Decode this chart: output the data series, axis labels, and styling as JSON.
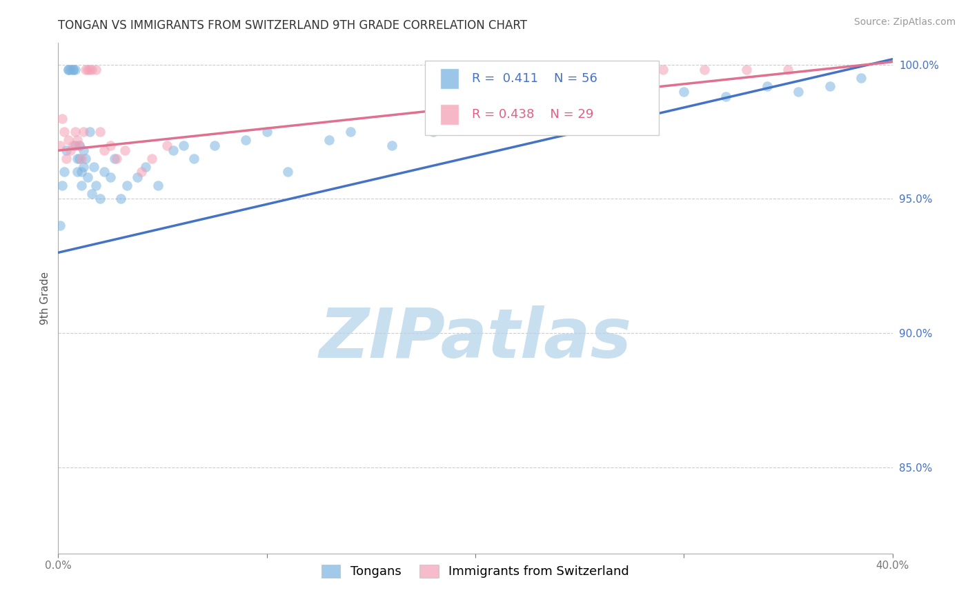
{
  "title": "TONGAN VS IMMIGRANTS FROM SWITZERLAND 9TH GRADE CORRELATION CHART",
  "source": "Source: ZipAtlas.com",
  "ylabel": "9th Grade",
  "xlim": [
    0.0,
    0.4
  ],
  "ylim": [
    0.818,
    1.008
  ],
  "xtick_positions": [
    0.0,
    0.1,
    0.2,
    0.3,
    0.4
  ],
  "xtick_labels": [
    "0.0%",
    "",
    "",
    "",
    "40.0%"
  ],
  "ytick_positions": [
    0.85,
    0.9,
    0.95,
    1.0
  ],
  "ytick_labels": [
    "85.0%",
    "90.0%",
    "95.0%",
    "100.0%"
  ],
  "blue_R": 0.411,
  "blue_N": 56,
  "pink_R": 0.438,
  "pink_N": 29,
  "blue_color": "#7ab3e0",
  "pink_color": "#f4a0b5",
  "blue_line_color": "#4472c4",
  "pink_line_color": "#e07090",
  "blue_label": "Tongans",
  "pink_label": "Immigrants from Switzerland",
  "blue_x": [
    0.001,
    0.002,
    0.003,
    0.004,
    0.005,
    0.005,
    0.006,
    0.007,
    0.007,
    0.008,
    0.008,
    0.009,
    0.009,
    0.01,
    0.01,
    0.011,
    0.011,
    0.012,
    0.012,
    0.013,
    0.014,
    0.015,
    0.016,
    0.017,
    0.018,
    0.02,
    0.022,
    0.025,
    0.027,
    0.03,
    0.033,
    0.038,
    0.042,
    0.048,
    0.055,
    0.06,
    0.065,
    0.075,
    0.09,
    0.1,
    0.11,
    0.13,
    0.14,
    0.16,
    0.18,
    0.2,
    0.22,
    0.24,
    0.26,
    0.28,
    0.3,
    0.32,
    0.34,
    0.355,
    0.37,
    0.385
  ],
  "blue_y": [
    0.94,
    0.955,
    0.96,
    0.968,
    0.998,
    0.998,
    0.998,
    0.998,
    0.998,
    0.998,
    0.97,
    0.965,
    0.96,
    0.97,
    0.965,
    0.96,
    0.955,
    0.968,
    0.962,
    0.965,
    0.958,
    0.975,
    0.952,
    0.962,
    0.955,
    0.95,
    0.96,
    0.958,
    0.965,
    0.95,
    0.955,
    0.958,
    0.962,
    0.955,
    0.968,
    0.97,
    0.965,
    0.97,
    0.972,
    0.975,
    0.96,
    0.972,
    0.975,
    0.97,
    0.975,
    0.978,
    0.98,
    0.985,
    0.988,
    0.985,
    0.99,
    0.988,
    0.992,
    0.99,
    0.992,
    0.995
  ],
  "pink_x": [
    0.001,
    0.002,
    0.003,
    0.004,
    0.005,
    0.006,
    0.007,
    0.008,
    0.009,
    0.01,
    0.011,
    0.012,
    0.013,
    0.014,
    0.015,
    0.016,
    0.018,
    0.02,
    0.022,
    0.025,
    0.028,
    0.032,
    0.04,
    0.045,
    0.052,
    0.29,
    0.31,
    0.33,
    0.35
  ],
  "pink_y": [
    0.97,
    0.98,
    0.975,
    0.965,
    0.972,
    0.968,
    0.97,
    0.975,
    0.972,
    0.97,
    0.965,
    0.975,
    0.998,
    0.998,
    0.998,
    0.998,
    0.998,
    0.975,
    0.968,
    0.97,
    0.965,
    0.968,
    0.96,
    0.965,
    0.97,
    0.998,
    0.998,
    0.998,
    0.998
  ],
  "blue_trend_x0": 0.0,
  "blue_trend_y0": 0.93,
  "blue_trend_x1": 0.4,
  "blue_trend_y1": 1.002,
  "pink_trend_x0": 0.0,
  "pink_trend_y0": 0.968,
  "pink_trend_x1": 0.4,
  "pink_trend_y1": 1.001,
  "watermark_text": "ZIPatlas",
  "watermark_color": "#c8dff0",
  "title_fontsize": 12,
  "tick_fontsize": 11,
  "ylabel_fontsize": 11,
  "source_fontsize": 10
}
